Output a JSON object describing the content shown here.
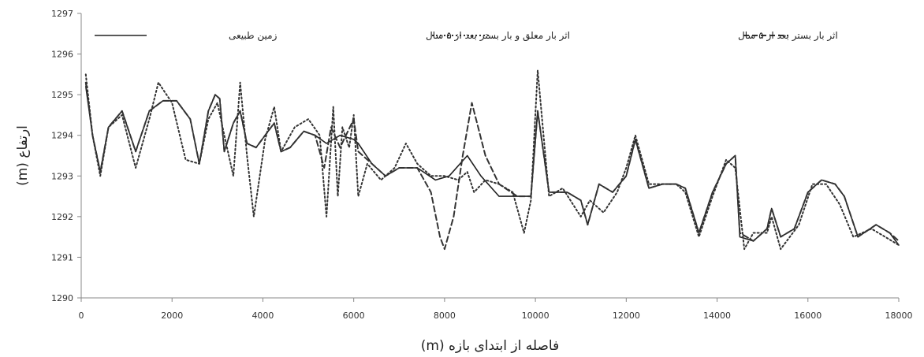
{
  "chart_data": {
    "type": "line",
    "xlabel": "فاصله از ابتدای بازه (m)",
    "ylabel": "ارتفاع (m)",
    "xlim": [
      0,
      18000
    ],
    "ylim": [
      1290,
      1297
    ],
    "xticks": [
      "0",
      "2000",
      "4000",
      "6000",
      "8000",
      "10000",
      "12000",
      "14000",
      "16000",
      "18000"
    ],
    "yticks": [
      "1290",
      "1291",
      "1292",
      "1293",
      "1294",
      "1295",
      "1296",
      "1297"
    ],
    "grid": false,
    "legend_position": "top",
    "series": [
      {
        "name": "زمین طبیعی",
        "style": "solid",
        "color": "#222222",
        "x": [
          100,
          250,
          420,
          600,
          900,
          1200,
          1500,
          1800,
          2100,
          2400,
          2600,
          2800,
          2950,
          3050,
          3150,
          3350,
          3500,
          3650,
          3850,
          4050,
          4250,
          4400,
          4600,
          4900,
          5150,
          5400,
          5700,
          6000,
          6100,
          6400,
          6700,
          7000,
          7400,
          7800,
          8100,
          8500,
          8800,
          9200,
          9600,
          9900,
          10050,
          10300,
          10700,
          11000,
          11150,
          11400,
          11700,
          12000,
          12200,
          12500,
          12800,
          13100,
          13300,
          13600,
          13900,
          14200,
          14400,
          14500,
          14800,
          15100,
          15200,
          15400,
          15700,
          16000,
          16300,
          16600,
          16800,
          17100,
          17500,
          17800,
          18000
        ],
        "y": [
          1295.2,
          1294.0,
          1293.1,
          1294.2,
          1294.6,
          1293.6,
          1294.6,
          1294.85,
          1294.85,
          1294.4,
          1293.3,
          1294.6,
          1295.0,
          1294.9,
          1293.6,
          1294.3,
          1294.6,
          1293.8,
          1293.7,
          1294.0,
          1294.3,
          1293.6,
          1293.7,
          1294.1,
          1294.0,
          1293.8,
          1294.0,
          1293.9,
          1293.8,
          1293.3,
          1293.0,
          1293.2,
          1293.2,
          1292.9,
          1293.0,
          1293.5,
          1293.0,
          1292.5,
          1292.5,
          1292.5,
          1294.6,
          1292.6,
          1292.6,
          1292.4,
          1291.8,
          1292.8,
          1292.6,
          1293.0,
          1293.9,
          1292.7,
          1292.8,
          1292.8,
          1292.7,
          1291.6,
          1292.6,
          1293.3,
          1293.5,
          1291.5,
          1291.4,
          1291.7,
          1292.2,
          1291.5,
          1291.7,
          1292.6,
          1292.9,
          1292.8,
          1292.5,
          1291.5,
          1291.8,
          1291.6,
          1291.3
        ]
      },
      {
        "name": "اثر بار معلق و بار بستر بعد از ۵ سال",
        "style": "dotted",
        "color": "#333333",
        "x": [
          100,
          250,
          420,
          600,
          900,
          1200,
          1500,
          1700,
          2000,
          2300,
          2600,
          2800,
          3000,
          3150,
          3350,
          3500,
          3650,
          3800,
          4050,
          4250,
          4400,
          4700,
          5000,
          5250,
          5400,
          5550,
          5650,
          5750,
          5900,
          6000,
          6100,
          6300,
          6600,
          6900,
          7150,
          7400,
          7700,
          8000,
          8300,
          8500,
          8650,
          8900,
          9200,
          9500,
          9750,
          9900,
          10050,
          10300,
          10600,
          11000,
          11200,
          11500,
          11800,
          12000,
          12200,
          12500,
          12800,
          13100,
          13300,
          13600,
          13900,
          14200,
          14400,
          14600,
          14800,
          15100,
          15200,
          15400,
          15800,
          16100,
          16400,
          16700,
          17000,
          17400,
          17700,
          18000
        ],
        "y": [
          1295.5,
          1294.0,
          1293.0,
          1294.2,
          1294.5,
          1293.2,
          1294.4,
          1295.3,
          1294.8,
          1293.4,
          1293.3,
          1294.4,
          1294.8,
          1294.0,
          1293.0,
          1295.3,
          1293.5,
          1292.0,
          1293.9,
          1294.7,
          1293.6,
          1294.2,
          1294.4,
          1294.0,
          1292.0,
          1294.7,
          1292.5,
          1294.2,
          1293.7,
          1294.5,
          1292.5,
          1293.3,
          1292.9,
          1293.2,
          1293.8,
          1293.3,
          1293.0,
          1293.0,
          1292.9,
          1293.1,
          1292.6,
          1292.9,
          1292.8,
          1292.6,
          1291.6,
          1292.4,
          1295.6,
          1292.5,
          1292.7,
          1292.0,
          1292.4,
          1292.1,
          1292.6,
          1293.2,
          1294.0,
          1292.8,
          1292.8,
          1292.8,
          1292.6,
          1291.5,
          1292.5,
          1293.4,
          1293.2,
          1291.2,
          1291.6,
          1291.6,
          1292.0,
          1291.2,
          1291.8,
          1292.8,
          1292.8,
          1292.3,
          1291.5,
          1291.7,
          1291.5,
          1291.3
        ]
      },
      {
        "name": "اثر بار بستر بعد از ۵ سال",
        "style": "dashed",
        "color": "#333333",
        "x": [
          100,
          250,
          420,
          600,
          900,
          1200,
          1500,
          1800,
          2100,
          2400,
          2600,
          2800,
          2950,
          3050,
          3150,
          3350,
          3500,
          3650,
          3850,
          4050,
          4250,
          4400,
          4600,
          4900,
          5150,
          5350,
          5500,
          5700,
          6000,
          6100,
          6400,
          6700,
          7000,
          7400,
          7700,
          7900,
          8000,
          8200,
          8400,
          8600,
          8900,
          9200,
          9600,
          9900,
          10050,
          10300,
          10700,
          11000,
          11150,
          11400,
          11700,
          12000,
          12200,
          12500,
          12800,
          13100,
          13300,
          13600,
          13900,
          14200,
          14400,
          14500,
          14800,
          15100,
          15200,
          15400,
          15700,
          16000,
          16300,
          16600,
          16800,
          17100,
          17500,
          17800,
          18000
        ],
        "y": [
          1295.3,
          1294.0,
          1293.1,
          1294.2,
          1294.6,
          1293.6,
          1294.6,
          1294.85,
          1294.85,
          1294.4,
          1293.3,
          1294.6,
          1295.0,
          1294.9,
          1293.6,
          1294.3,
          1294.6,
          1293.8,
          1293.7,
          1294.0,
          1294.3,
          1293.6,
          1293.7,
          1294.1,
          1294.0,
          1293.2,
          1294.2,
          1293.7,
          1294.4,
          1293.6,
          1293.3,
          1293.0,
          1293.2,
          1293.2,
          1292.6,
          1291.5,
          1291.2,
          1292.0,
          1293.5,
          1294.8,
          1293.5,
          1292.8,
          1292.5,
          1292.5,
          1294.6,
          1292.6,
          1292.6,
          1292.4,
          1291.8,
          1292.8,
          1292.6,
          1293.0,
          1293.9,
          1292.7,
          1292.8,
          1292.8,
          1292.7,
          1291.6,
          1292.6,
          1293.3,
          1293.5,
          1291.6,
          1291.4,
          1291.7,
          1292.2,
          1291.5,
          1291.7,
          1292.6,
          1292.9,
          1292.8,
          1292.5,
          1291.5,
          1291.8,
          1291.6,
          1291.4
        ]
      }
    ]
  }
}
